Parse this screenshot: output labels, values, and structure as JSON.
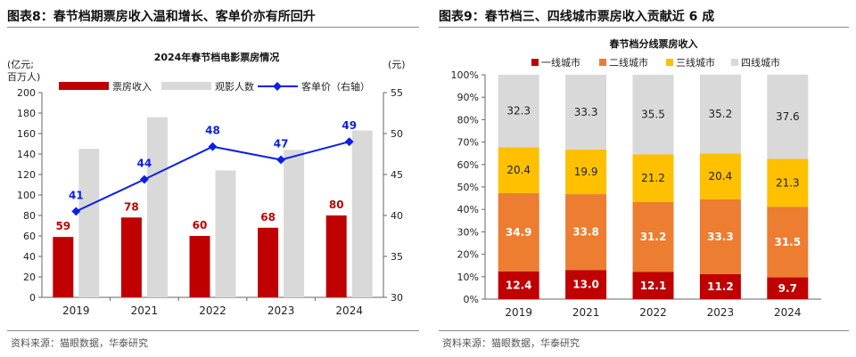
{
  "left": {
    "figure_title": "图表8：春节档期票房收入温和增长、客单价亦有所回升",
    "source": "资料来源：猫眼数据，华泰研究"
  },
  "right": {
    "figure_title": "图表9：春节档三、四线城市票房收入贡献近 6 成",
    "source": "资料来源：猫眼数据，华泰研究"
  },
  "colors": {
    "box_office": "#c00000",
    "viewers": "#d9d9d9",
    "price": "#0a1fe8",
    "tier1": "#c00000",
    "tier2": "#ed7d31",
    "tier3": "#ffc000",
    "tier4": "#d9d9d9"
  },
  "chart_data": [
    {
      "type": "bar",
      "title": "2024年春节档电影票房情况",
      "ylabel": "(亿元;百万人)",
      "y2label": "(元)",
      "categories": [
        "2019",
        "2021",
        "2022",
        "2023",
        "2024"
      ],
      "ylim": [
        0,
        200
      ],
      "yticks": [
        0,
        20,
        40,
        60,
        80,
        100,
        120,
        140,
        160,
        180,
        200
      ],
      "y2lim": [
        30,
        55
      ],
      "y2ticks": [
        30,
        35,
        40,
        45,
        50,
        55
      ],
      "series": [
        {
          "name": "票房收入",
          "kind": "bar",
          "axis": "left",
          "values": [
            59,
            78,
            60,
            68,
            80
          ],
          "labels": [
            "59",
            "78",
            "60",
            "68",
            "80"
          ]
        },
        {
          "name": "观影人数",
          "kind": "bar",
          "axis": "left",
          "values": [
            145,
            176,
            124,
            144,
            163
          ]
        },
        {
          "name": "客单价（右轴）",
          "kind": "line",
          "axis": "right",
          "values": [
            40.5,
            44.4,
            48.4,
            46.8,
            49
          ],
          "labels": [
            "41",
            "44",
            "48",
            "47",
            "49"
          ]
        }
      ],
      "legend_position": "top",
      "grid": false
    },
    {
      "type": "bar",
      "stacked": true,
      "title": "春节档分线票房收入",
      "categories": [
        "2019",
        "2021",
        "2022",
        "2023",
        "2024"
      ],
      "ylim": [
        0,
        100
      ],
      "yticks": [
        "0%",
        "10%",
        "20%",
        "30%",
        "40%",
        "50%",
        "60%",
        "70%",
        "80%",
        "90%",
        "100%"
      ],
      "series": [
        {
          "name": "一线城市",
          "values": [
            12.4,
            13.0,
            12.1,
            11.2,
            9.7
          ],
          "labels": [
            "12.4",
            "13.0",
            "12.1",
            "11.2",
            "9.7"
          ]
        },
        {
          "name": "二线城市",
          "values": [
            34.9,
            33.8,
            31.2,
            33.3,
            31.5
          ],
          "labels": [
            "34.9",
            "33.8",
            "31.2",
            "33.3",
            "31.5"
          ]
        },
        {
          "name": "三线城市",
          "values": [
            20.4,
            19.9,
            21.2,
            20.4,
            21.3
          ],
          "labels": [
            "20.4",
            "19.9",
            "21.2",
            "20.4",
            "21.3"
          ]
        },
        {
          "name": "四线城市",
          "values": [
            32.3,
            33.3,
            35.5,
            35.2,
            37.6
          ],
          "labels": [
            "32.3",
            "33.3",
            "35.5",
            "35.2",
            "37.6"
          ]
        }
      ],
      "legend_position": "top",
      "grid": false
    }
  ]
}
